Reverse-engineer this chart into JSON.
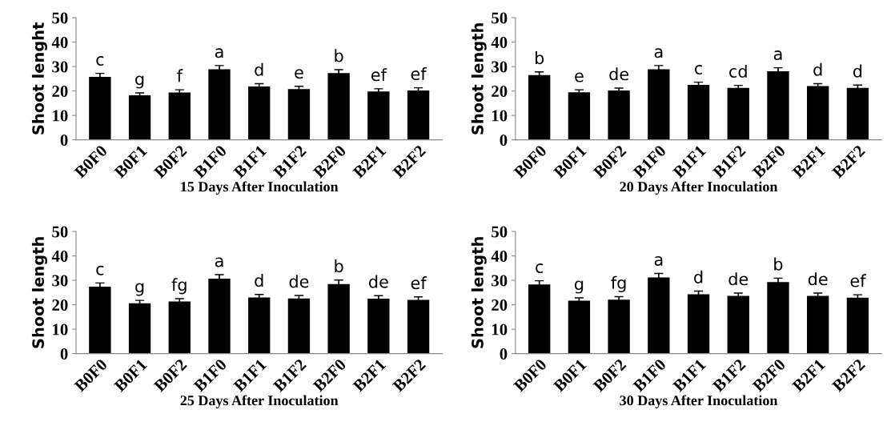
{
  "chart_data": [
    {
      "type": "bar",
      "xlabel": "15 Days After Inoculation",
      "ylabel": "Shoot lenght",
      "categories": [
        "B0F0",
        "B0F1",
        "B0F2",
        "B1F0",
        "B1F1",
        "B1F2",
        "B2F0",
        "B2F1",
        "B2F2"
      ],
      "values": [
        25.8,
        18.2,
        19.4,
        28.9,
        21.8,
        20.8,
        27.3,
        19.8,
        20.2
      ],
      "errors": [
        1.4,
        1.0,
        1.1,
        1.5,
        1.2,
        1.1,
        1.4,
        1.1,
        1.1
      ],
      "color": "#000000",
      "ylim": [
        0,
        50
      ],
      "yticks": [
        0,
        10,
        20,
        30,
        40,
        50
      ],
      "grid": false,
      "annotations": [
        "c",
        "g",
        "f",
        "a",
        "d",
        "e",
        "b",
        "ef",
        "ef"
      ]
    },
    {
      "type": "bar",
      "xlabel": "20 Days After Inoculation",
      "ylabel": "Shoot length",
      "categories": [
        "B0F0",
        "B0F1",
        "B0F2",
        "B1F0",
        "B1F1",
        "B1F2",
        "B2F0",
        "B2F1",
        "B2F2"
      ],
      "values": [
        26.5,
        19.5,
        20.2,
        28.9,
        22.5,
        21.3,
        28.1,
        22.0,
        21.3
      ],
      "errors": [
        1.3,
        1.0,
        1.0,
        1.5,
        1.1,
        1.0,
        1.4,
        1.0,
        1.1
      ],
      "color": "#000000",
      "ylim": [
        0,
        50
      ],
      "yticks": [
        0,
        10,
        20,
        30,
        40,
        50
      ],
      "grid": false,
      "annotations": [
        "b",
        "e",
        "de",
        "a",
        "c",
        "cd",
        "a",
        "d",
        "d"
      ]
    },
    {
      "type": "bar",
      "xlabel": "25 Days After Inoculation",
      "ylabel": "Shoot length",
      "categories": [
        "B0F0",
        "B0F1",
        "B0F2",
        "B1F0",
        "B1F1",
        "B1F2",
        "B2F0",
        "B2F1",
        "B2F2"
      ],
      "values": [
        27.4,
        20.6,
        21.3,
        30.7,
        23.0,
        22.6,
        28.5,
        22.5,
        22.0
      ],
      "errors": [
        1.5,
        1.2,
        1.2,
        1.6,
        1.2,
        1.2,
        1.6,
        1.2,
        1.2
      ],
      "color": "#000000",
      "ylim": [
        0,
        50
      ],
      "yticks": [
        0,
        10,
        20,
        30,
        40,
        50
      ],
      "grid": false,
      "annotations": [
        "c",
        "g",
        "fg",
        "a",
        "d",
        "de",
        "b",
        "de",
        "ef"
      ]
    },
    {
      "type": "bar",
      "xlabel": "30 Days After Inoculation",
      "ylabel": "Shoot length",
      "categories": [
        "B0F0",
        "B0F1",
        "B0F2",
        "B1F0",
        "B1F1",
        "B1F2",
        "B2F0",
        "B2F1",
        "B2F2"
      ],
      "values": [
        28.3,
        21.7,
        22.1,
        31.2,
        24.3,
        23.6,
        29.3,
        23.6,
        22.9
      ],
      "errors": [
        1.5,
        1.1,
        1.2,
        1.6,
        1.3,
        1.2,
        1.6,
        1.2,
        1.2
      ],
      "color": "#000000",
      "ylim": [
        0,
        50
      ],
      "yticks": [
        0,
        10,
        20,
        30,
        40,
        50
      ],
      "grid": false,
      "annotations": [
        "c",
        "g",
        "fg",
        "a",
        "d",
        "de",
        "b",
        "de",
        "ef"
      ]
    }
  ]
}
